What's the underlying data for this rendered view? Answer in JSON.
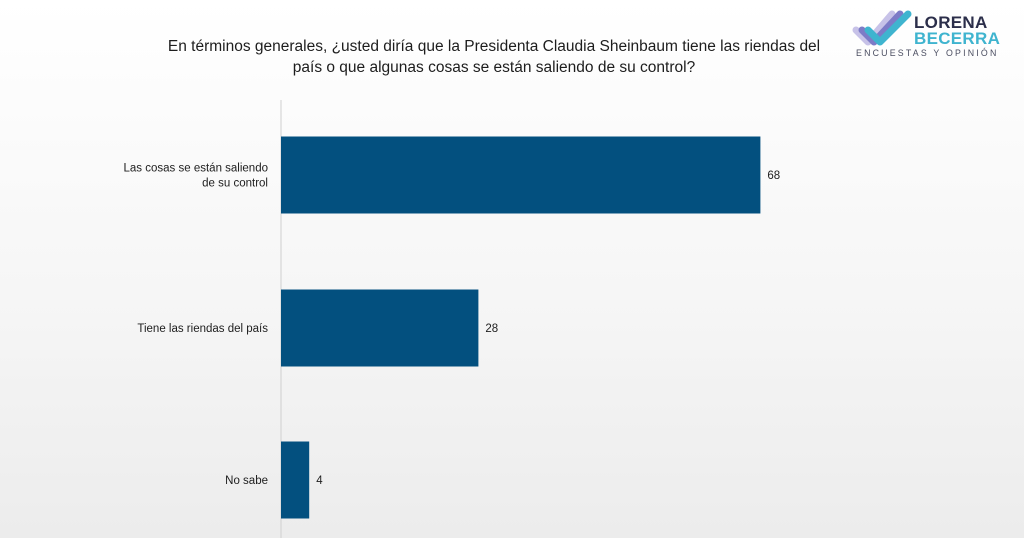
{
  "header": {
    "question_line1": "En términos generales, ¿usted diría que la Presidenta Claudia Sheinbaum tiene las riendas del",
    "question_line2": "país o que algunas cosas se están saliendo de su control?"
  },
  "logo": {
    "line1": "LORENA",
    "line2": "BECERRA",
    "tagline": "ENCUESTAS Y OPINIÓN"
  },
  "colors": {
    "bar": "#03507f",
    "text": "#1d1d1d",
    "axis": "#cfcfcf"
  },
  "chart_data": {
    "type": "bar",
    "orientation": "horizontal",
    "categories": [
      [
        "Las cosas se están saliendo",
        "de su control"
      ],
      [
        "Tiene las riendas del país"
      ],
      [
        "No sabe"
      ]
    ],
    "values": [
      68,
      28,
      4
    ],
    "xlim": [
      0,
      100
    ],
    "grid": false,
    "legend": "none"
  }
}
